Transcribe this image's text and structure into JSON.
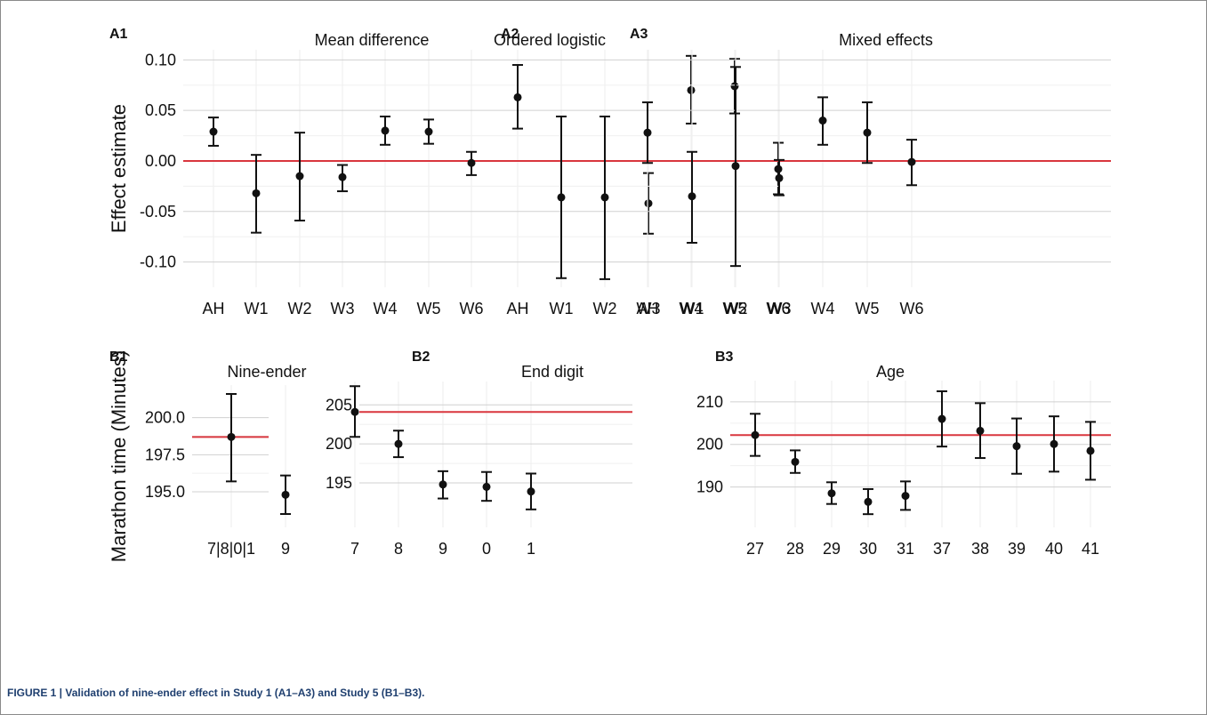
{
  "figure": {
    "caption_label": "FIGURE 1 |",
    "caption_text": "Validation of nine-ender effect in Study 1 (A1–A3) and Study 5 (B1–B3)."
  },
  "colors": {
    "reference_line": "#d9363e",
    "points": "#111111",
    "grid_major": "#d0d0d0",
    "grid_minor": "#f0f0f0"
  },
  "chart_data": [
    {
      "type": "scatter",
      "variant": "point-with-error-bars",
      "panel_label": "A1",
      "title": "Mean difference",
      "ylabel": "Effect estimate",
      "xlabel": "",
      "ylim": [
        -0.125,
        0.11
      ],
      "yticks": [
        -0.1,
        -0.05,
        0.0,
        0.05,
        0.1
      ],
      "ytick_labels": [
        "-0.10",
        "-0.05",
        "0.00",
        "0.05",
        "0.10"
      ],
      "categories": [
        "AH",
        "W1",
        "W2",
        "W3",
        "W4",
        "W5",
        "W6"
      ],
      "values": [
        0.029,
        -0.032,
        -0.015,
        -0.016,
        0.03,
        0.029,
        -0.002
      ],
      "lower": [
        0.015,
        -0.071,
        -0.059,
        -0.03,
        0.016,
        0.017,
        -0.014
      ],
      "upper": [
        0.043,
        0.006,
        0.028,
        -0.004,
        0.044,
        0.041,
        0.009
      ],
      "reference_line": 0.0
    },
    {
      "type": "scatter",
      "variant": "point-with-error-bars",
      "panel_label": "A2",
      "title": "Ordered logistic",
      "ylabel": "",
      "xlabel": "",
      "ylim": [
        -0.125,
        0.11
      ],
      "yticks": [
        -0.1,
        -0.05,
        0.0,
        0.05,
        0.1
      ],
      "ytick_labels": [],
      "categories": [
        "AH",
        "W1",
        "W2",
        "W3",
        "W4",
        "W5",
        "W6"
      ],
      "values": [
        0.063,
        -0.036,
        -0.036,
        -0.042,
        0.07,
        0.074,
        -0.008
      ],
      "lower": [
        0.032,
        -0.116,
        -0.117,
        -0.072,
        0.037,
        0.047,
        -0.033
      ],
      "upper": [
        0.095,
        0.044,
        0.044,
        -0.012,
        0.104,
        0.101,
        0.018
      ],
      "reference_line": 0.0
    },
    {
      "type": "scatter",
      "variant": "point-with-error-bars",
      "panel_label": "A3",
      "title": "Mixed effects",
      "ylabel": "",
      "xlabel": "",
      "ylim": [
        -0.125,
        0.11
      ],
      "yticks": [
        -0.1,
        -0.05,
        0.0,
        0.05,
        0.1
      ],
      "ytick_labels": [],
      "categories": [
        "AH",
        "W1",
        "W2",
        "W3",
        "W4",
        "W5",
        "W6"
      ],
      "values": [
        0.028,
        -0.035,
        -0.005,
        -0.017,
        0.04,
        0.028,
        -0.001
      ],
      "lower": [
        -0.002,
        -0.081,
        -0.104,
        -0.034,
        0.016,
        -0.002,
        -0.024
      ],
      "upper": [
        0.058,
        0.009,
        0.093,
        0.001,
        0.063,
        0.058,
        0.021
      ],
      "reference_line": 0.0
    },
    {
      "type": "scatter",
      "variant": "point-with-error-bars",
      "panel_label": "B1",
      "title": "Nine-ender",
      "ylabel": "Marathon time (Minutes)",
      "xlabel": "",
      "ylim": [
        192.6,
        202.2
      ],
      "yticks": [
        195.0,
        197.5,
        200.0
      ],
      "ytick_labels": [
        "195.0",
        "197.5",
        "200.0"
      ],
      "categories": [
        "7|8|0|1",
        "9"
      ],
      "values": [
        198.7,
        194.8
      ],
      "lower": [
        195.7,
        193.5
      ],
      "upper": [
        201.6,
        196.1
      ],
      "reference_line": 198.7
    },
    {
      "type": "scatter",
      "variant": "point-with-error-bars",
      "panel_label": "B2",
      "title": "End digit",
      "ylabel": "",
      "xlabel": "",
      "ylim": [
        189.3,
        208.0
      ],
      "yticks": [
        195,
        200,
        205
      ],
      "ytick_labels": [
        "195",
        "200",
        "205"
      ],
      "categories": [
        "7",
        "8",
        "9",
        "0",
        "1"
      ],
      "values": [
        204.1,
        200.0,
        194.8,
        194.5,
        193.9
      ],
      "lower": [
        200.9,
        198.3,
        193.0,
        192.7,
        191.6
      ],
      "upper": [
        207.4,
        201.7,
        196.5,
        196.4,
        196.2
      ],
      "reference_line": 204.1
    },
    {
      "type": "scatter",
      "variant": "point-with-error-bars",
      "panel_label": "B3",
      "title": "Age",
      "ylabel": "",
      "xlabel": "",
      "ylim": [
        180.5,
        215.0
      ],
      "yticks": [
        190,
        200,
        210
      ],
      "ytick_labels": [
        "190",
        "200",
        "210"
      ],
      "categories": [
        "27",
        "28",
        "29",
        "30",
        "31",
        "37",
        "38",
        "39",
        "40",
        "41"
      ],
      "values": [
        202.2,
        195.9,
        188.5,
        186.5,
        187.9,
        206.0,
        203.2,
        199.6,
        200.1,
        198.5
      ],
      "lower": [
        197.3,
        193.3,
        186.0,
        183.6,
        184.6,
        199.5,
        196.8,
        193.1,
        193.6,
        191.7
      ],
      "upper": [
        207.2,
        198.6,
        191.1,
        189.5,
        191.3,
        212.5,
        209.7,
        206.1,
        206.6,
        205.3
      ],
      "reference_line": 202.2
    }
  ]
}
